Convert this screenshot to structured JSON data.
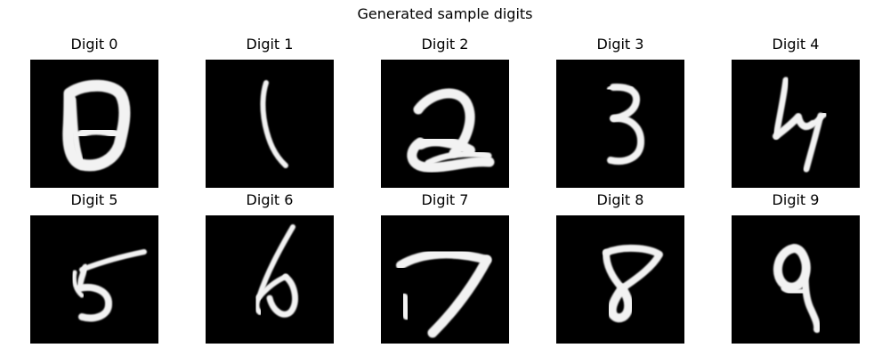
{
  "figure": {
    "title": "Generated sample digits"
  },
  "panels": [
    {
      "title": "Digit 0",
      "icon": "digit-0-icon"
    },
    {
      "title": "Digit 1",
      "icon": "digit-1-icon"
    },
    {
      "title": "Digit 2",
      "icon": "digit-2-icon"
    },
    {
      "title": "Digit 3",
      "icon": "digit-3-icon"
    },
    {
      "title": "Digit 4",
      "icon": "digit-4-icon"
    },
    {
      "title": "Digit 5",
      "icon": "digit-5-icon"
    },
    {
      "title": "Digit 6",
      "icon": "digit-6-icon"
    },
    {
      "title": "Digit 7",
      "icon": "digit-7-icon"
    },
    {
      "title": "Digit 8",
      "icon": "digit-8-icon"
    },
    {
      "title": "Digit 9",
      "icon": "digit-9-icon"
    }
  ],
  "colors": {
    "background": "#ffffff",
    "image_background": "#000000",
    "ink": "#f2f2f2",
    "text": "#000000"
  }
}
